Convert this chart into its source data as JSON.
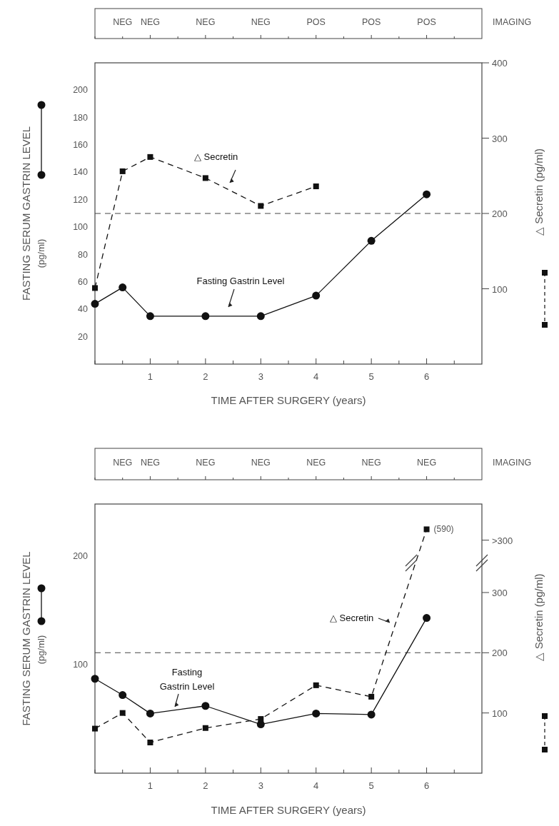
{
  "chart_data": [
    {
      "type": "line",
      "xlabel": "TIME AFTER SURGERY (years)",
      "ylabel": "FASTING SERUM GASTRIN LEVEL\n(pg/ml)",
      "y2label": "△ Secretin (pg/ml)",
      "xlim": [
        0,
        7
      ],
      "xticks": [
        {
          "value": 0,
          "label": null
        },
        {
          "value": 0.5,
          "label": null
        },
        1,
        {
          "value": 1.5,
          "label": null
        },
        2,
        {
          "value": 2.5,
          "label": null
        },
        3,
        {
          "value": 3.5,
          "label": null
        },
        4,
        {
          "value": 4.5,
          "label": null
        },
        5,
        {
          "value": 5.5,
          "label": null
        },
        6,
        {
          "value": 6.5,
          "label": null
        }
      ],
      "ylim": [
        0,
        220
      ],
      "yticks": [
        20,
        40,
        60,
        80,
        100,
        120,
        140,
        160,
        180,
        200
      ],
      "y2lim": [
        0,
        400
      ],
      "y2ticks": [
        100,
        200,
        300,
        400
      ],
      "series": [
        {
          "name": "Fasting Gastrin Level",
          "color": "#111111",
          "x": [
            0,
            0.5,
            1,
            2,
            3,
            4,
            5,
            6
          ],
          "values": [
            44,
            56,
            35,
            35,
            35,
            50,
            90,
            124
          ],
          "marker": "circle",
          "line_style": "solid"
        },
        {
          "name": "△ Secretin",
          "color": "#111111",
          "axis": "y2",
          "x": [
            0,
            0.5,
            1,
            2,
            3,
            4
          ],
          "values": [
            101,
            256,
            275,
            247,
            210,
            236
          ],
          "marker": "square",
          "line_style": "dashed"
        }
      ],
      "ref_lines": [
        {
          "axis": "y2",
          "value": 200,
          "line_style": "dashed"
        }
      ],
      "annotations": [
        "IMAGING",
        {
          "text": "NEG",
          "x": 0.5
        },
        {
          "text": "NEG",
          "x": 1
        },
        {
          "text": "NEG",
          "x": 2
        },
        {
          "text": "NEG",
          "x": 3
        },
        {
          "text": "POS",
          "x": 4
        },
        {
          "text": "POS",
          "x": 5
        },
        {
          "text": "POS",
          "x": 6
        }
      ]
    },
    {
      "type": "line",
      "xlabel": "TIME AFTER SURGERY (years)",
      "ylabel": "FASTING SERUM GASTRIN LEVEL\n(pg/ml)",
      "y2label": "△ Secretin (pg/ml)",
      "xlim": [
        0,
        7
      ],
      "xticks": [
        {
          "value": 0,
          "label": null
        },
        {
          "value": 0.5,
          "label": null
        },
        1,
        {
          "value": 1.5,
          "label": null
        },
        2,
        {
          "value": 2.5,
          "label": null
        },
        3,
        {
          "value": 3.5,
          "label": null
        },
        4,
        {
          "value": 4.5,
          "label": null
        },
        5,
        {
          "value": 5.5,
          "label": null
        },
        6,
        {
          "value": 6.5,
          "label": null
        }
      ],
      "ylim": [
        0,
        248
      ],
      "yticks": [
        100,
        200
      ],
      "y2lim": [
        0,
        447
      ],
      "y2ticks": [
        100,
        200,
        300,
        {
          "value": 387,
          "label": ">300"
        }
      ],
      "series": [
        {
          "name": "Fasting Gastrin Level",
          "color": "#111111",
          "x": [
            0,
            0.5,
            1,
            2,
            3,
            4,
            5,
            6
          ],
          "values": [
            87,
            72,
            55,
            62,
            45,
            55,
            54,
            143
          ],
          "marker": "circle",
          "line_style": "solid"
        },
        {
          "name": "△ Secretin",
          "color": "#111111",
          "axis": "y2",
          "x": [
            0,
            0.5,
            1,
            2,
            3,
            4,
            5,
            6
          ],
          "values": [
            74,
            100,
            51,
            75,
            90,
            146,
            127,
            405
          ],
          "marker": "square",
          "line_style": "dashed"
        }
      ],
      "ref_lines": [
        {
          "axis": "y2",
          "value": 200,
          "line_style": "dashed"
        }
      ],
      "annotations": [
        "IMAGING",
        "(590)",
        {
          "text": "NEG",
          "x": 0.5
        },
        {
          "text": "NEG",
          "x": 1
        },
        {
          "text": "NEG",
          "x": 2
        },
        {
          "text": "NEG",
          "x": 3
        },
        {
          "text": "NEG",
          "x": 4
        },
        {
          "text": "NEG",
          "x": 5
        },
        {
          "text": "NEG",
          "x": 6
        }
      ]
    }
  ]
}
